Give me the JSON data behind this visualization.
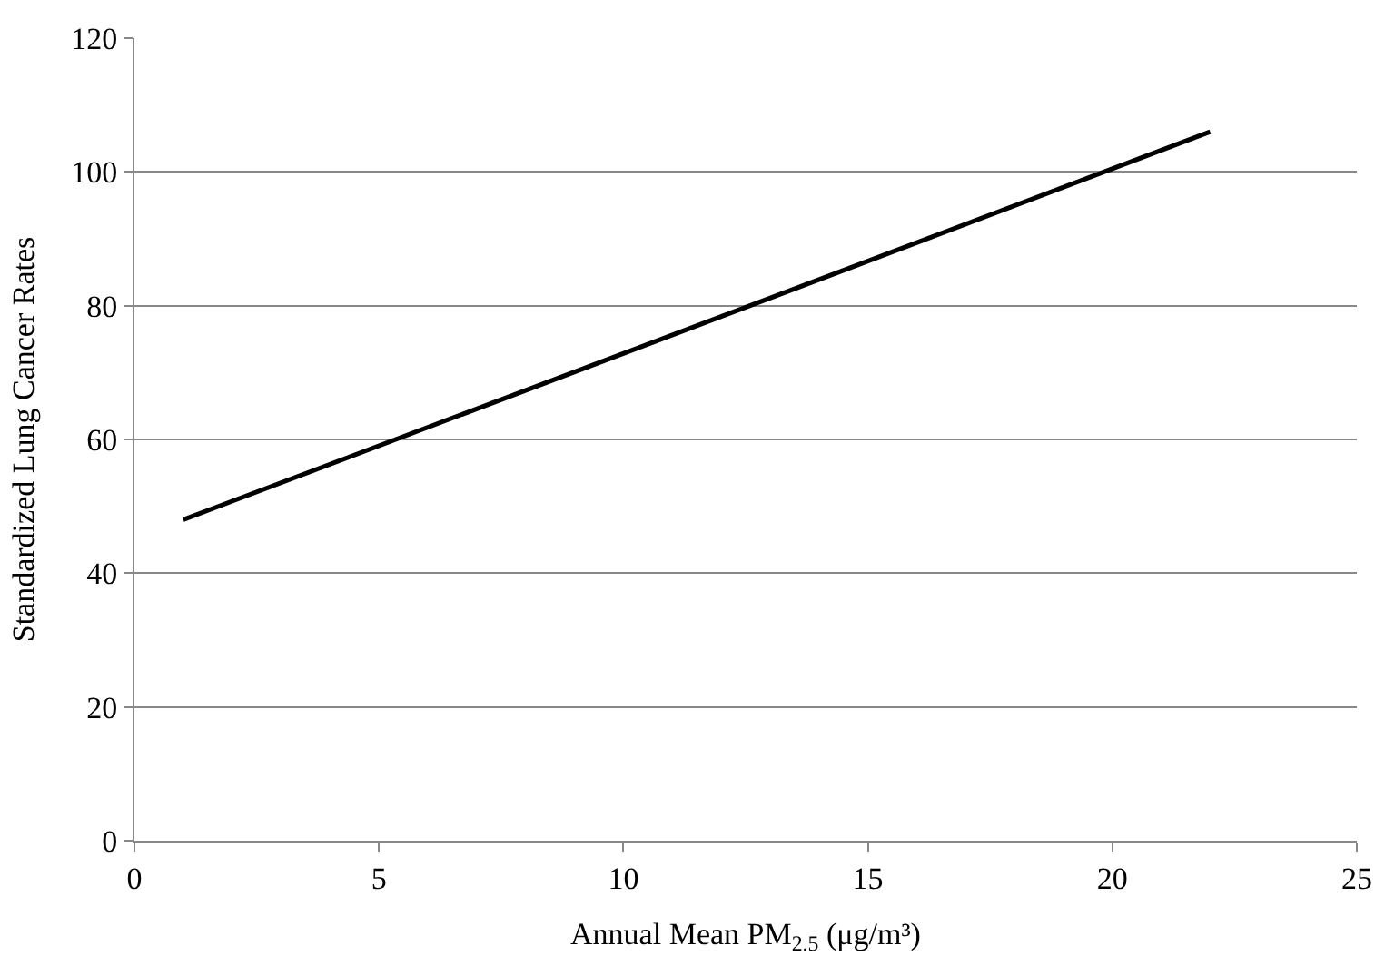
{
  "chart_data": {
    "type": "line",
    "xlabel": "Annual Mean PM$_{2.5}$ (μg/m³)",
    "ylabel": "Standardized Lung Cancer Rates",
    "x": [
      1,
      22
    ],
    "series": [
      {
        "color": "#000000",
        "values": [
          48,
          106
        ]
      }
    ],
    "xlim": [
      0,
      25
    ],
    "xticks": [
      0,
      5,
      10,
      15,
      20,
      25
    ],
    "ylim": [
      0,
      120
    ],
    "yticks": [
      0,
      20,
      40,
      60,
      80,
      100,
      120
    ],
    "grid": "y",
    "marker": "none",
    "line_style": "solid"
  }
}
